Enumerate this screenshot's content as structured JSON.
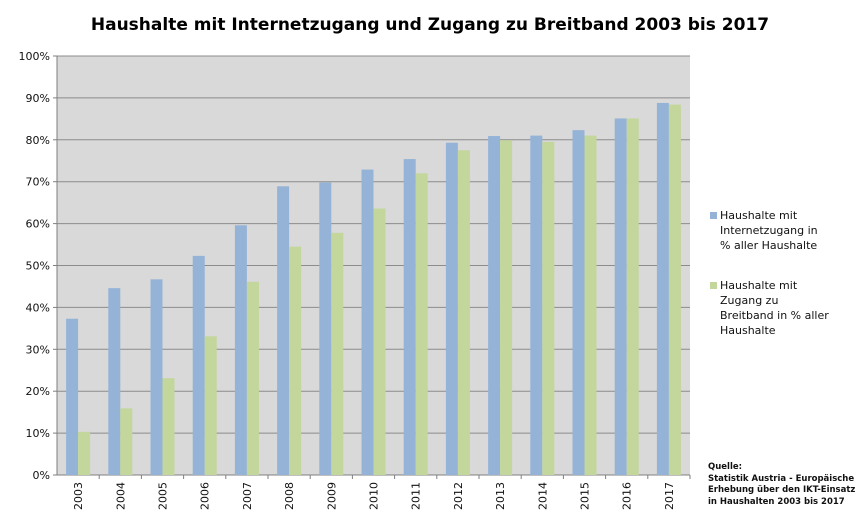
{
  "chart_data": {
    "type": "bar",
    "title": "Haushalte mit Internetzugang und Zugang zu Breitband 2003 bis 2017",
    "categories": [
      "2003",
      "2004",
      "2005",
      "2006",
      "2007",
      "2008",
      "2009",
      "2010",
      "2011",
      "2012",
      "2013",
      "2014",
      "2015",
      "2016",
      "2017"
    ],
    "series": [
      {
        "name": "Haushalte mit Internetzugang in % aller Haushalte",
        "color": "#95b3d7",
        "values": [
          37.3,
          44.6,
          46.7,
          52.3,
          59.6,
          68.9,
          69.8,
          72.9,
          75.4,
          79.3,
          80.9,
          81.0,
          82.3,
          85.1,
          88.8
        ]
      },
      {
        "name": "Haushalte mit Zugang zu Breitband in % aller Haushalte",
        "color": "#c3d69b",
        "values": [
          10.3,
          15.9,
          23.1,
          33.1,
          46.1,
          54.5,
          57.8,
          63.6,
          72.0,
          77.5,
          79.9,
          79.5,
          81.0,
          85.1,
          88.4
        ]
      }
    ],
    "y_ticks": [
      "0%",
      "10%",
      "20%",
      "30%",
      "40%",
      "50%",
      "60%",
      "70%",
      "80%",
      "90%",
      "100%"
    ],
    "ylim": [
      0,
      100
    ],
    "grid": true,
    "legend_position": "right",
    "plot_background": "#d9d9d9"
  },
  "source_note": {
    "heading": "Quelle:",
    "text": "Statistik Austria - Europäische Erhebung über den IKT-Einsatz in Haushalten 2003 bis 2017"
  }
}
